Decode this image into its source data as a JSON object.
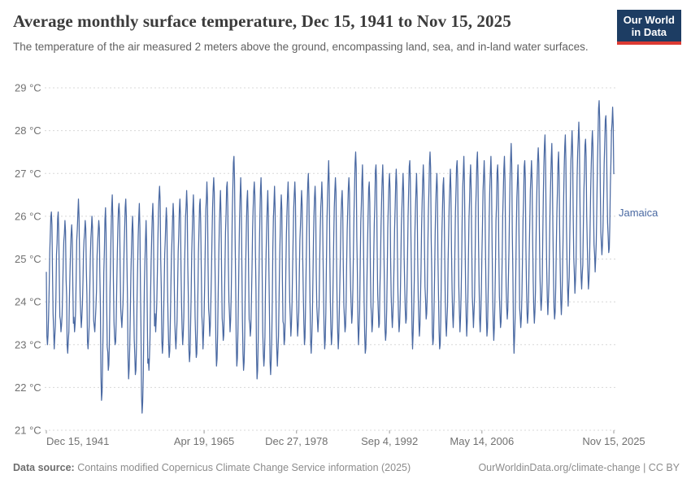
{
  "header": {
    "title": "Average monthly surface temperature, Dec 15, 1941 to Nov 15, 2025",
    "subtitle": "The temperature of the air measured 2 meters above the ground, encompassing land, sea, and in-land water surfaces.",
    "logo_line1": "Our World",
    "logo_line2": "in Data"
  },
  "footer": {
    "source_label": "Data source:",
    "source_text": " Contains modified Copernicus Climate Change Service information (2025)",
    "link_text": "OurWorldinData.org/climate-change | CC BY"
  },
  "chart_data": {
    "type": "line",
    "title": "Average monthly surface temperature",
    "series_label": "Jamaica",
    "unit": "°C",
    "ylim": [
      21,
      29
    ],
    "y_ticks": [
      21,
      22,
      23,
      24,
      25,
      26,
      27,
      28,
      29
    ],
    "y_tick_suffix": " °C",
    "grid": "dashed-horizontal",
    "legend_position": "right-of-line-end",
    "line_color": "#4a69a2",
    "x_start": "Dec 15, 1941",
    "x_end": "Nov 15, 2025",
    "x_ticks": [
      {
        "label": "Dec 15, 1941",
        "month_index": 0
      },
      {
        "label": "Apr 19, 1965",
        "month_index": 280
      },
      {
        "label": "Dec 27, 1978",
        "month_index": 444
      },
      {
        "label": "Sep 4, 1992",
        "month_index": 609
      },
      {
        "label": "May 14, 2006",
        "month_index": 773
      },
      {
        "label": "Nov 15, 2025",
        "month_index": 1007
      }
    ],
    "frequency": "monthly",
    "total_points": 1008,
    "first_point": {
      "date": "Dec 1941",
      "value": 24.7
    },
    "seasonal_shape": [
      0.1,
      0.0,
      0.06,
      0.2,
      0.42,
      0.65,
      0.8,
      0.93,
      1.0,
      0.88,
      0.52,
      0.26
    ],
    "annual_envelope": [
      [
        1942,
        23.0,
        26.1
      ],
      [
        1943,
        22.9,
        26.1
      ],
      [
        1944,
        23.3,
        25.9
      ],
      [
        1945,
        22.8,
        25.8
      ],
      [
        1946,
        23.3,
        26.4
      ],
      [
        1947,
        23.4,
        25.9
      ],
      [
        1948,
        22.9,
        26.0
      ],
      [
        1949,
        23.3,
        25.9
      ],
      [
        1950,
        21.7,
        26.2
      ],
      [
        1951,
        22.4,
        26.5
      ],
      [
        1952,
        23.0,
        26.3
      ],
      [
        1953,
        23.4,
        26.4
      ],
      [
        1954,
        22.2,
        26.0
      ],
      [
        1955,
        22.3,
        26.3
      ],
      [
        1956,
        21.4,
        25.9
      ],
      [
        1957,
        22.4,
        26.3
      ],
      [
        1958,
        23.3,
        26.7
      ],
      [
        1959,
        22.8,
        26.2
      ],
      [
        1960,
        22.7,
        26.3
      ],
      [
        1961,
        22.9,
        26.4
      ],
      [
        1962,
        23.0,
        26.6
      ],
      [
        1963,
        22.6,
        26.5
      ],
      [
        1964,
        22.7,
        26.4
      ],
      [
        1965,
        22.9,
        26.8
      ],
      [
        1966,
        23.2,
        26.9
      ],
      [
        1967,
        22.5,
        26.6
      ],
      [
        1968,
        23.1,
        26.8
      ],
      [
        1969,
        23.3,
        27.4
      ],
      [
        1970,
        22.5,
        26.9
      ],
      [
        1971,
        22.4,
        26.6
      ],
      [
        1972,
        23.2,
        26.8
      ],
      [
        1973,
        22.2,
        26.9
      ],
      [
        1974,
        22.5,
        26.6
      ],
      [
        1975,
        22.3,
        26.7
      ],
      [
        1976,
        22.5,
        26.5
      ],
      [
        1977,
        23.0,
        26.8
      ],
      [
        1978,
        23.2,
        26.8
      ],
      [
        1979,
        23.2,
        26.6
      ],
      [
        1980,
        23.0,
        27.0
      ],
      [
        1981,
        22.8,
        26.7
      ],
      [
        1982,
        23.3,
        26.8
      ],
      [
        1983,
        22.9,
        27.3
      ],
      [
        1984,
        23.0,
        26.9
      ],
      [
        1985,
        22.9,
        26.6
      ],
      [
        1986,
        23.3,
        26.9
      ],
      [
        1987,
        23.5,
        27.5
      ],
      [
        1988,
        23.0,
        27.2
      ],
      [
        1989,
        22.8,
        26.8
      ],
      [
        1990,
        23.3,
        27.2
      ],
      [
        1991,
        23.4,
        27.2
      ],
      [
        1992,
        23.1,
        27.0
      ],
      [
        1993,
        23.4,
        27.1
      ],
      [
        1994,
        23.3,
        27.0
      ],
      [
        1995,
        23.5,
        27.3
      ],
      [
        1996,
        22.9,
        27.0
      ],
      [
        1997,
        23.2,
        27.2
      ],
      [
        1998,
        23.6,
        27.5
      ],
      [
        1999,
        23.0,
        27.0
      ],
      [
        2000,
        22.9,
        26.9
      ],
      [
        2001,
        23.2,
        27.1
      ],
      [
        2002,
        23.4,
        27.3
      ],
      [
        2003,
        23.3,
        27.4
      ],
      [
        2004,
        23.2,
        27.2
      ],
      [
        2005,
        23.4,
        27.5
      ],
      [
        2006,
        23.3,
        27.3
      ],
      [
        2007,
        23.2,
        27.4
      ],
      [
        2008,
        23.1,
        27.2
      ],
      [
        2009,
        23.4,
        27.4
      ],
      [
        2010,
        23.6,
        27.7
      ],
      [
        2011,
        22.8,
        27.2
      ],
      [
        2012,
        23.4,
        27.3
      ],
      [
        2013,
        23.5,
        27.3
      ],
      [
        2014,
        23.5,
        27.6
      ],
      [
        2015,
        23.8,
        27.9
      ],
      [
        2016,
        23.7,
        27.7
      ],
      [
        2017,
        23.6,
        27.5
      ],
      [
        2018,
        23.7,
        27.9
      ],
      [
        2019,
        23.9,
        28.0
      ],
      [
        2020,
        24.2,
        28.2
      ],
      [
        2021,
        24.3,
        27.8
      ],
      [
        2022,
        24.3,
        28.0
      ],
      [
        2023,
        24.7,
        28.7
      ],
      [
        2024,
        25.1,
        28.35
      ],
      [
        2025,
        25.15,
        28.55
      ]
    ]
  }
}
